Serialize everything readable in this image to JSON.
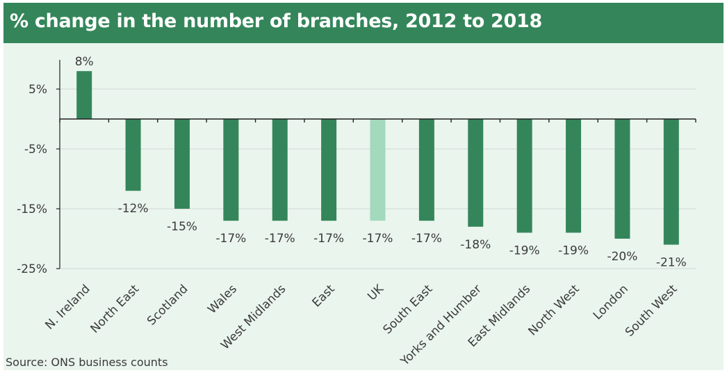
{
  "title": "% change in the number of branches, 2012 to 2018",
  "source": "Source: ONS business counts",
  "colors": {
    "header": "#34865a",
    "background": "#eaf5ee",
    "bar": "#34865a",
    "bar_highlight": "#a3d9bc"
  },
  "chart_data": {
    "type": "bar",
    "title": "% change in the number of branches, 2012 to 2018",
    "categories": [
      "N. Ireland",
      "North East",
      "Scotland",
      "Wales",
      "West Midlands",
      "East",
      "UK",
      "South East",
      "Yorks and Humber",
      "East Midlands",
      "North West",
      "London",
      "South West"
    ],
    "values": [
      8,
      -12,
      -15,
      -17,
      -17,
      -17,
      -17,
      -17,
      -18,
      -19,
      -19,
      -20,
      -21
    ],
    "data_labels": [
      "8%",
      "-12%",
      "-15%",
      "-17%",
      "-17%",
      "-17%",
      "-17%",
      "-17%",
      "-18%",
      "-19%",
      "-19%",
      "-20%",
      "-21%"
    ],
    "highlight_category": "UK",
    "ylim": [
      -25,
      10
    ],
    "yticks": [
      5,
      -5,
      -15,
      -25
    ],
    "ytick_labels": [
      "5%",
      "-5%",
      "-15%",
      "-25%"
    ],
    "xlabel": "",
    "ylabel": "",
    "grid": true,
    "legend": "none"
  }
}
